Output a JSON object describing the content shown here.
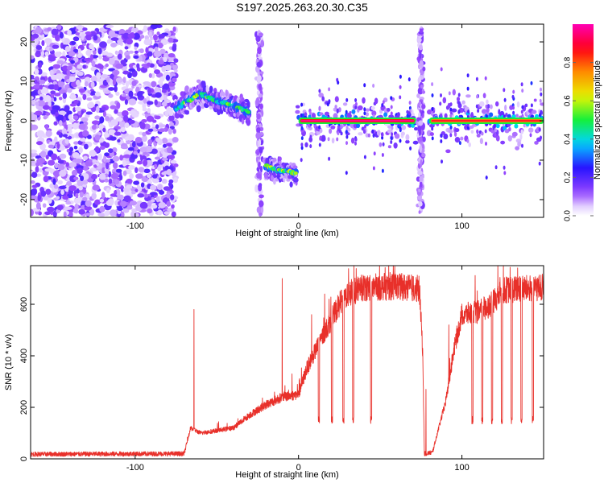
{
  "figure_title": "S197.2025.263.20.30.C35",
  "chart_data": [
    {
      "type": "heatmap",
      "title": "S197.2025.263.20.30.C35",
      "xlabel": "Height of straight line (km)",
      "ylabel": "Frequency (Hz)",
      "xlim": [
        -164,
        150
      ],
      "ylim": [
        -24.5,
        24.5
      ],
      "xticks": [
        -100,
        0,
        100
      ],
      "yticks": [
        -20,
        -10,
        0,
        10,
        20
      ],
      "colorbar": {
        "label": "Normalized spectral amplitude",
        "range": [
          0,
          1
        ],
        "ticks": [
          0.0,
          0.2,
          0.4,
          0.6,
          0.8
        ]
      },
      "features": [
        {
          "name": "broadband-noise",
          "x_range": [
            -164,
            -75
          ],
          "freq_range": [
            -24,
            24
          ],
          "amplitude": 0.15
        },
        {
          "name": "signal-upper-segment",
          "x": [
            -75,
            -68,
            -60,
            -50,
            -40,
            -30
          ],
          "freq": [
            3,
            5,
            7,
            5,
            4,
            2
          ],
          "amplitude": 0.45
        },
        {
          "name": "signal-vertical-streak-1",
          "x": -24,
          "freq_range": [
            -24,
            24
          ],
          "amplitude": 0.1
        },
        {
          "name": "signal-lower-segment",
          "x": [
            -20,
            -12,
            -6,
            -1
          ],
          "freq": [
            -11.5,
            -12.5,
            -13,
            -13.5
          ],
          "amplitude": 0.5
        },
        {
          "name": "carrier-zero-1",
          "x_range": [
            0,
            72
          ],
          "freq": 0,
          "amplitude": 1.0
        },
        {
          "name": "signal-vertical-streak-2",
          "x": 75,
          "freq_range": [
            -24,
            24
          ],
          "amplitude": 0.1
        },
        {
          "name": "carrier-zero-2",
          "x_range": [
            80,
            150
          ],
          "freq": 0,
          "amplitude": 0.9
        }
      ]
    },
    {
      "type": "line",
      "xlabel": "Height of straight line (km)",
      "ylabel": "SNR (10 * v/v)",
      "xlim": [
        -164,
        150
      ],
      "ylim": [
        0,
        750
      ],
      "xticks": [
        -100,
        0,
        100
      ],
      "yticks": [
        0,
        200,
        400,
        600
      ],
      "color": "#e8302a",
      "baseline": [
        {
          "x": -164,
          "y": 18
        },
        {
          "x": -70,
          "y": 20
        },
        {
          "x": -66,
          "y": 120
        },
        {
          "x": -60,
          "y": 100
        },
        {
          "x": -40,
          "y": 120
        },
        {
          "x": -30,
          "y": 170
        },
        {
          "x": -20,
          "y": 210
        },
        {
          "x": -10,
          "y": 240
        },
        {
          "x": 0,
          "y": 250
        },
        {
          "x": 5,
          "y": 350
        },
        {
          "x": 15,
          "y": 480
        },
        {
          "x": 25,
          "y": 600
        },
        {
          "x": 30,
          "y": 640
        },
        {
          "x": 40,
          "y": 665
        },
        {
          "x": 60,
          "y": 670
        },
        {
          "x": 74,
          "y": 660
        },
        {
          "x": 76,
          "y": 420
        },
        {
          "x": 77,
          "y": 20
        },
        {
          "x": 82,
          "y": 25
        },
        {
          "x": 85,
          "y": 100
        },
        {
          "x": 90,
          "y": 220
        },
        {
          "x": 95,
          "y": 420
        },
        {
          "x": 100,
          "y": 560
        },
        {
          "x": 110,
          "y": 570
        },
        {
          "x": 118,
          "y": 600
        },
        {
          "x": 125,
          "y": 655
        },
        {
          "x": 150,
          "y": 665
        }
      ],
      "spikes": [
        {
          "x": -64,
          "y": 580
        },
        {
          "x": -10,
          "y": 700
        },
        {
          "x": -4,
          "y": 330
        },
        {
          "x": 8,
          "y": 560
        },
        {
          "x": 16,
          "y": 640
        },
        {
          "x": 78,
          "y": 270
        },
        {
          "x": 92,
          "y": 520
        }
      ],
      "dropouts": [
        {
          "x": 12,
          "y": 150
        },
        {
          "x": 20,
          "y": 150
        },
        {
          "x": 27,
          "y": 150
        },
        {
          "x": 33,
          "y": 150
        },
        {
          "x": 44,
          "y": 150
        },
        {
          "x": 106,
          "y": 150
        },
        {
          "x": 112,
          "y": 150
        },
        {
          "x": 118,
          "y": 150
        },
        {
          "x": 124,
          "y": 150
        },
        {
          "x": 130,
          "y": 150
        },
        {
          "x": 136,
          "y": 150
        },
        {
          "x": 143,
          "y": 150
        }
      ]
    }
  ]
}
